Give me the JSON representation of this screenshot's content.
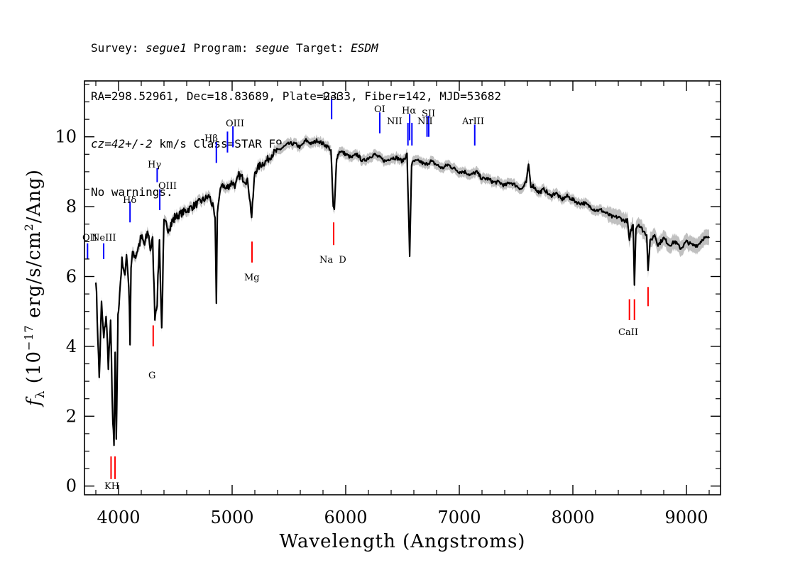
{
  "header": {
    "line1": {
      "survey_label": "Survey: ",
      "survey": "segue1",
      "program_label": " Program: ",
      "program": "segue",
      "target_label": " Target: ",
      "target": "ESDM"
    },
    "line2": "RA=298.52961, Dec=18.83689, Plate=2333, Fiber=142, MJD=53682",
    "line3": {
      "cz": "cz=42+/-2",
      "rest": " km/s Class=STAR F9"
    },
    "line4": "No warnings."
  },
  "chart_data": {
    "type": "line",
    "xlabel": "Wavelength (Angstroms)",
    "ylabel": "f_λ (10^-17 erg/s/cm^2/Ang)",
    "xlim": [
      3700,
      9300
    ],
    "ylim": [
      -0.25,
      11.6
    ],
    "x_ticks": [
      "4000",
      "5000",
      "6000",
      "7000",
      "8000",
      "9000"
    ],
    "y_ticks": [
      "0",
      "2",
      "4",
      "6",
      "8",
      "10"
    ],
    "grid": false,
    "series": [
      {
        "x": [
          3800,
          3830,
          3850,
          3870,
          3890,
          3910,
          3930,
          3950,
          3960,
          3970,
          3980,
          3995,
          4010,
          4030,
          4050,
          4070,
          4090,
          4101,
          4110,
          4130,
          4150,
          4180,
          4200,
          4230,
          4260,
          4280,
          4300,
          4320,
          4340,
          4360,
          4380,
          4400,
          4430,
          4460,
          4500,
          4550,
          4600,
          4650,
          4700,
          4750,
          4800,
          4830,
          4850,
          4861,
          4870,
          4890,
          4910,
          4940,
          4970,
          5000,
          5030,
          5060,
          5100,
          5140,
          5172,
          5185,
          5200,
          5250,
          5300,
          5350,
          5400,
          5450,
          5500,
          5550,
          5600,
          5650,
          5700,
          5750,
          5800,
          5850,
          5870,
          5890,
          5900,
          5920,
          5950,
          6000,
          6050,
          6100,
          6150,
          6200,
          6250,
          6300,
          6350,
          6400,
          6450,
          6500,
          6540,
          6563,
          6580,
          6600,
          6650,
          6700,
          6750,
          6800,
          6850,
          6900,
          6950,
          7000,
          7050,
          7100,
          7150,
          7200,
          7250,
          7300,
          7350,
          7400,
          7450,
          7500,
          7550,
          7590,
          7610,
          7630,
          7650,
          7700,
          7750,
          7800,
          7850,
          7900,
          7950,
          8000,
          8050,
          8100,
          8150,
          8200,
          8250,
          8300,
          8350,
          8400,
          8450,
          8480,
          8498,
          8510,
          8530,
          8542,
          8555,
          8580,
          8620,
          8650,
          8662,
          8680,
          8720,
          8750,
          8800,
          8850,
          8900,
          8950,
          9000,
          9050,
          9100,
          9150,
          9200
        ],
        "y": [
          6.0,
          3.1,
          5.2,
          4.2,
          4.9,
          3.5,
          4.6,
          1.8,
          1.1,
          3.8,
          1.2,
          4.8,
          5.6,
          6.4,
          6.0,
          6.6,
          5.8,
          4.2,
          6.3,
          6.7,
          6.6,
          6.9,
          7.1,
          6.9,
          7.3,
          6.8,
          7.0,
          4.9,
          5.3,
          7.0,
          4.5,
          7.5,
          7.4,
          7.5,
          7.7,
          7.8,
          7.9,
          8.0,
          8.1,
          8.2,
          8.3,
          8.0,
          7.6,
          5.3,
          7.9,
          8.3,
          8.7,
          8.5,
          8.6,
          8.7,
          8.6,
          8.9,
          8.8,
          8.7,
          7.7,
          8.3,
          9.0,
          9.2,
          9.3,
          9.5,
          9.6,
          9.7,
          9.8,
          9.8,
          9.7,
          9.9,
          9.8,
          9.9,
          9.8,
          9.7,
          9.6,
          8.0,
          7.9,
          9.4,
          9.6,
          9.5,
          9.4,
          9.5,
          9.3,
          9.4,
          9.5,
          9.4,
          9.3,
          9.4,
          9.4,
          9.3,
          9.5,
          6.6,
          9.2,
          9.3,
          9.3,
          9.2,
          9.3,
          9.2,
          9.1,
          9.2,
          9.1,
          9.0,
          9.0,
          8.9,
          9.0,
          8.8,
          8.8,
          8.7,
          8.7,
          8.6,
          8.7,
          8.6,
          8.5,
          8.7,
          9.2,
          8.6,
          8.6,
          8.4,
          8.5,
          8.3,
          8.4,
          8.2,
          8.3,
          8.2,
          8.1,
          8.1,
          8.0,
          7.9,
          7.9,
          7.8,
          7.7,
          7.7,
          7.6,
          7.6,
          7.0,
          7.3,
          7.5,
          5.8,
          7.4,
          7.5,
          7.3,
          7.2,
          6.2,
          7.0,
          7.2,
          6.9,
          7.1,
          6.9,
          7.0,
          6.8,
          7.0,
          6.9,
          6.9,
          7.1,
          7.1
        ]
      }
    ],
    "line_labels": [
      {
        "name": "OII",
        "wave": 3727,
        "color": "#0000ff",
        "y_lo": 6.5,
        "y_hi": 6.95
      },
      {
        "name": "NeIII",
        "wave": 3869,
        "color": "#0000ff",
        "y_lo": 6.5,
        "y_hi": 6.95
      },
      {
        "name": "Hδ",
        "wave": 4101,
        "color": "#0000ff",
        "y_lo": 7.55,
        "y_hi": 8.15
      },
      {
        "name": "Hγ",
        "wave": 4340,
        "color": "#0000ff",
        "y_lo": 8.7,
        "y_hi": 9.1
      },
      {
        "name": "OIII",
        "wave": 4363,
        "color": "#0000ff",
        "y_lo": 7.9,
        "y_hi": 8.5
      },
      {
        "name": "Hβ",
        "wave": 4861,
        "color": "#0000ff",
        "y_lo": 9.25,
        "y_hi": 9.85
      },
      {
        "name": "OIII",
        "wave": 4959,
        "color": "#0000ff",
        "y_lo": 9.55,
        "y_hi": 10.15
      },
      {
        "name": "OIII",
        "wave": 5007,
        "color": "#0000ff",
        "y_lo": 9.7,
        "y_hi": 10.3
      },
      {
        "name": "HeI",
        "wave": 5876,
        "color": "#0000ff",
        "y_lo": 10.5,
        "y_hi": 11.1
      },
      {
        "name": "OI",
        "wave": 6300,
        "color": "#0000ff",
        "y_lo": 10.1,
        "y_hi": 10.7
      },
      {
        "name": "NII",
        "wave": 6548,
        "color": "#0000ff",
        "y_lo": 9.75,
        "y_hi": 10.4
      },
      {
        "name": "Hα",
        "wave": 6563,
        "color": "#0000ff",
        "y_lo": 9.9,
        "y_hi": 10.65
      },
      {
        "name": "NII",
        "wave": 6583,
        "color": "#0000ff",
        "y_lo": 9.75,
        "y_hi": 10.4
      },
      {
        "name": "SII",
        "wave": 6716,
        "color": "#0000ff",
        "y_lo": 10.0,
        "y_hi": 10.6
      },
      {
        "name": "SII",
        "wave": 6731,
        "color": "#0000ff",
        "y_lo": 10.0,
        "y_hi": 10.6
      },
      {
        "name": "ArIII",
        "wave": 7136,
        "color": "#0000ff",
        "y_lo": 9.75,
        "y_hi": 10.35
      },
      {
        "name": "K",
        "wave": 3934,
        "color": "#ff0000",
        "y_lo": 0.2,
        "y_hi": 0.85
      },
      {
        "name": "H",
        "wave": 3969,
        "color": "#ff0000",
        "y_lo": 0.2,
        "y_hi": 0.85
      },
      {
        "name": "G",
        "wave": 4305,
        "color": "#ff0000",
        "y_lo": 4.0,
        "y_hi": 4.6
      },
      {
        "name": "Mg",
        "wave": 5175,
        "color": "#ff0000",
        "y_lo": 6.4,
        "y_hi": 7.0
      },
      {
        "name": "Na",
        "wave": 5894,
        "color": "#ff0000",
        "y_lo": 6.9,
        "y_hi": 7.55
      },
      {
        "name": "CaII",
        "wave": 8498,
        "color": "#ff0000",
        "y_lo": 4.75,
        "y_hi": 5.35
      },
      {
        "name": "CaII",
        "wave": 8542,
        "color": "#ff0000",
        "y_lo": 4.75,
        "y_hi": 5.35
      },
      {
        "name": "CaII",
        "wave": 8662,
        "color": "#ff0000",
        "y_lo": 5.15,
        "y_hi": 5.7
      }
    ],
    "label_texts": {
      "oii": "OII",
      "neiii": "NeIII",
      "hdelta": "Hδ",
      "hgamma": "Hγ",
      "oiii_a": "OIII",
      "hbeta": "Hβ",
      "oiii_b": "OIII",
      "hei": "HeI",
      "oi": "OI",
      "nii_a": "NII",
      "halpha": "Hα",
      "sii": "SII",
      "nii_b": "NII",
      "ariii": "ArIII",
      "kh": "KH",
      "g": "G",
      "mg": "Mg",
      "nad": "Na  D",
      "caii": "CaII"
    },
    "colors": {
      "flux": "#000000",
      "error_band": "#c0c0c0",
      "emission": "#0000ff",
      "absorption": "#ff0000"
    }
  }
}
